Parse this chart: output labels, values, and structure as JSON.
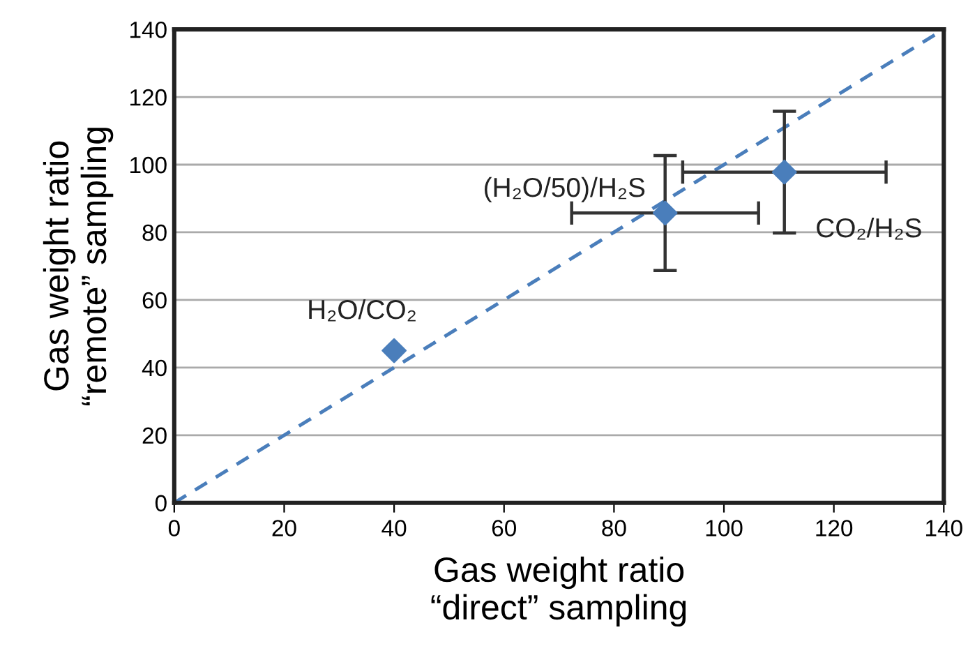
{
  "chart_data": {
    "type": "scatter",
    "xlabel": "Gas weight ratio\n“direct” sampling",
    "ylabel": "Gas weight ratio\n“remote” sampling",
    "series": [
      {
        "color": "#4a7ebb",
        "x": [
          40,
          89.3,
          111
        ],
        "values": [
          45,
          85.7,
          97.8
        ],
        "errors": [
          null,
          17,
          18
        ],
        "xerrors": [
          null,
          17,
          18.5
        ],
        "marker": "diamond"
      },
      {
        "type": "line",
        "color": "#4a7ebb",
        "x": [
          0,
          140
        ],
        "values": [
          0,
          140
        ],
        "line_style": "dashed",
        "marker": "none"
      }
    ],
    "annotations": [
      {
        "text": "H₂O/CO₂",
        "x": 40,
        "y": 45
      },
      {
        "text": "(H₂O/50)/H₂S",
        "x": 89.3,
        "y": 85.7
      },
      {
        "text": "CO₂/H₂S",
        "x": 111,
        "y": 97.8
      }
    ],
    "xlim": [
      0,
      140
    ],
    "ylim": [
      0,
      140
    ],
    "xticks": [
      0,
      20,
      40,
      60,
      80,
      100,
      120,
      140
    ],
    "yticks": [
      0,
      20,
      40,
      60,
      80,
      100,
      120,
      140
    ],
    "grid": "y"
  }
}
